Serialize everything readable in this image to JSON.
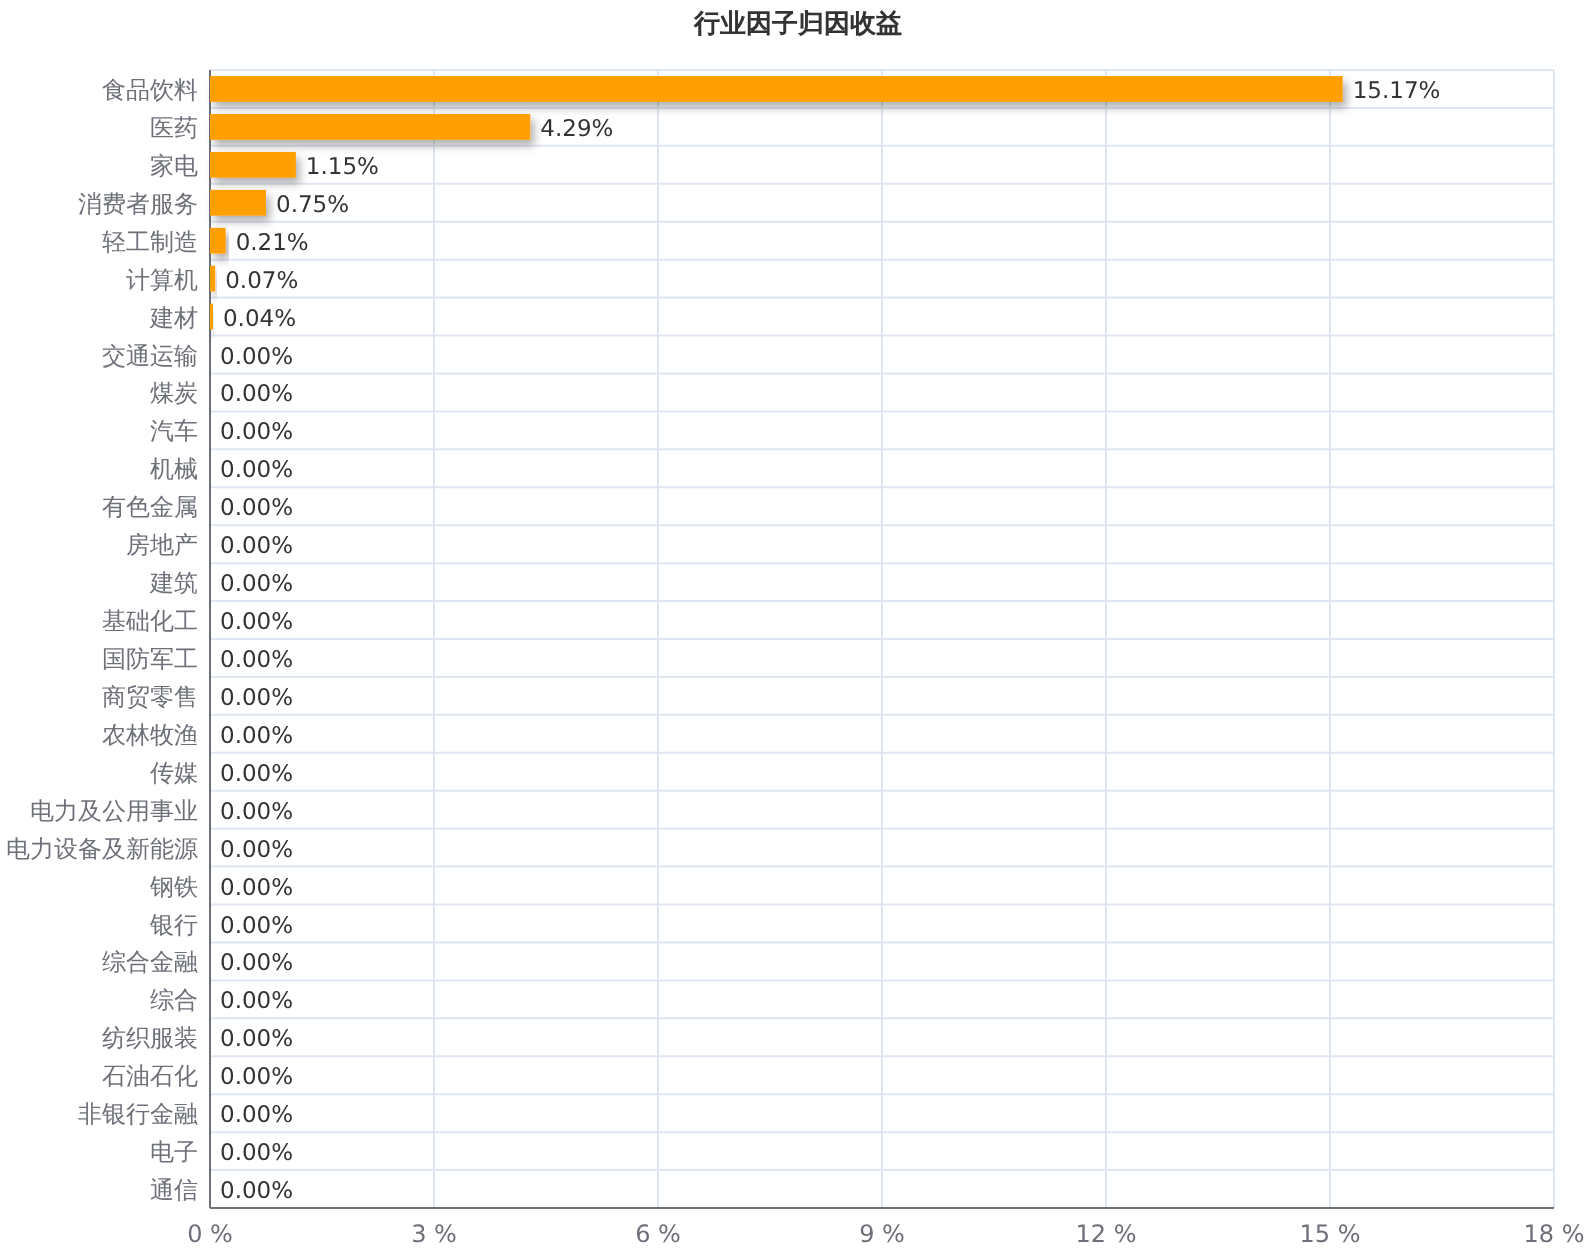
{
  "chart_data": {
    "type": "bar",
    "orientation": "horizontal",
    "title": "行业因子归因收益",
    "categories": [
      "食品饮料",
      "医药",
      "家电",
      "消费者服务",
      "轻工制造",
      "计算机",
      "建材",
      "交通运输",
      "煤炭",
      "汽车",
      "机械",
      "有色金属",
      "房地产",
      "建筑",
      "基础化工",
      "国防军工",
      "商贸零售",
      "农林牧渔",
      "传媒",
      "电力及公用事业",
      "电力设备及新能源",
      "钢铁",
      "银行",
      "综合金融",
      "综合",
      "纺织服装",
      "石油石化",
      "非银行金融",
      "电子",
      "通信"
    ],
    "values": [
      15.17,
      4.29,
      1.15,
      0.75,
      0.21,
      0.07,
      0.04,
      0,
      0,
      0,
      0,
      0,
      0,
      0,
      0,
      0,
      0,
      0,
      0,
      0,
      0,
      0,
      0,
      0,
      0,
      0,
      0,
      0,
      0,
      0
    ],
    "value_labels": [
      "15.17%",
      "4.29%",
      "1.15%",
      "0.75%",
      "0.21%",
      "0.07%",
      "0.04%",
      "0.00%",
      "0.00%",
      "0.00%",
      "0.00%",
      "0.00%",
      "0.00%",
      "0.00%",
      "0.00%",
      "0.00%",
      "0.00%",
      "0.00%",
      "0.00%",
      "0.00%",
      "0.00%",
      "0.00%",
      "0.00%",
      "0.00%",
      "0.00%",
      "0.00%",
      "0.00%",
      "0.00%",
      "0.00%",
      "0.00%"
    ],
    "color": "#ff9f00",
    "xlim": [
      0,
      18
    ],
    "xticks": [
      {
        "value": 0,
        "label": "0 %"
      },
      {
        "value": 3,
        "label": "3 %"
      },
      {
        "value": 6,
        "label": "6 %"
      },
      {
        "value": 9,
        "label": "9 %"
      },
      {
        "value": 12,
        "label": "12 %"
      },
      {
        "value": 15,
        "label": "15 %"
      },
      {
        "value": 18,
        "label": "18 %"
      }
    ],
    "grid": true
  }
}
